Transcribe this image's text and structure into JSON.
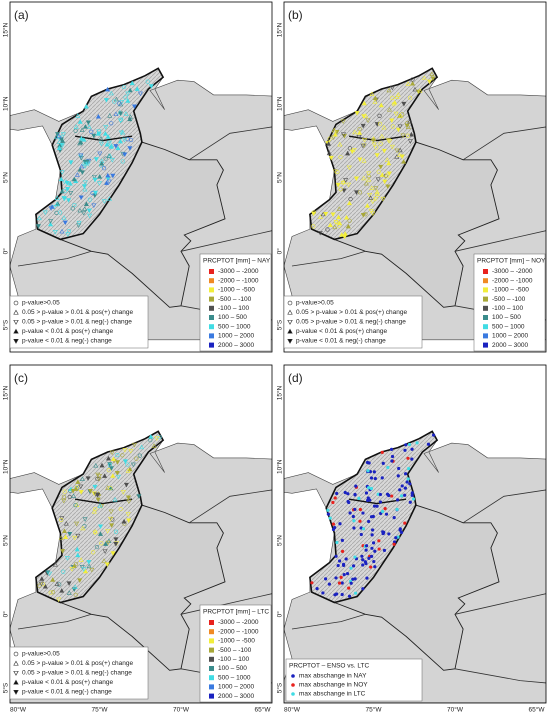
{
  "panels": [
    {
      "label": "(a)",
      "legend_title": "PRCPTOT [mm] – NAY"
    },
    {
      "label": "(b)",
      "legend_title": "PRCPTOT [mm] – NOY"
    },
    {
      "label": "(c)",
      "legend_title": "PRCPTOT [mm] – LTC"
    },
    {
      "label": "(d)",
      "legend_title": "PRCPTOT – ENSO vs. LTC"
    }
  ],
  "classes": [
    {
      "label": "-3000 – -2000",
      "color": "#e8221e"
    },
    {
      "label": "-2000 – -1000",
      "color": "#f08a24"
    },
    {
      "label": "-1000 – -500",
      "color": "#f2ee3a"
    },
    {
      "label": "-500 – -100",
      "color": "#a8a838"
    },
    {
      "label": "-100 – 100",
      "color": "#505050"
    },
    {
      "label": "100 – 500",
      "color": "#3a8c8c"
    },
    {
      "label": "500 – 1000",
      "color": "#40dce4"
    },
    {
      "label": "1000 – 2000",
      "color": "#3a7ae0"
    },
    {
      "label": "2000 – 3000",
      "color": "#1a22c0"
    }
  ],
  "symbols": [
    {
      "label": "p-value>0.05",
      "marker": "circle-open"
    },
    {
      "label": "0.05 > p-value > 0.01 & pos(+) change",
      "marker": "up-open"
    },
    {
      "label": "0.05 > p-value > 0.01 & neg(-) change",
      "marker": "down-open"
    },
    {
      "label": "p-value < 0.01 & pos(+) change",
      "marker": "up-filled"
    },
    {
      "label": "p-value < 0.01 & neg(-) change",
      "marker": "down-filled"
    }
  ],
  "d_items": [
    {
      "label": "max abschange in NAY",
      "color": "#1a22c0"
    },
    {
      "label": "max abschange in NOY",
      "color": "#e8221e"
    },
    {
      "label": "max abschange in LTC",
      "color": "#40dce4"
    }
  ],
  "lat_labels": [
    "15°N",
    "10°N",
    "5°N",
    "0°",
    "5°S"
  ],
  "lon_labels": [
    "80°W",
    "75°W",
    "70°W",
    "65°W"
  ]
}
